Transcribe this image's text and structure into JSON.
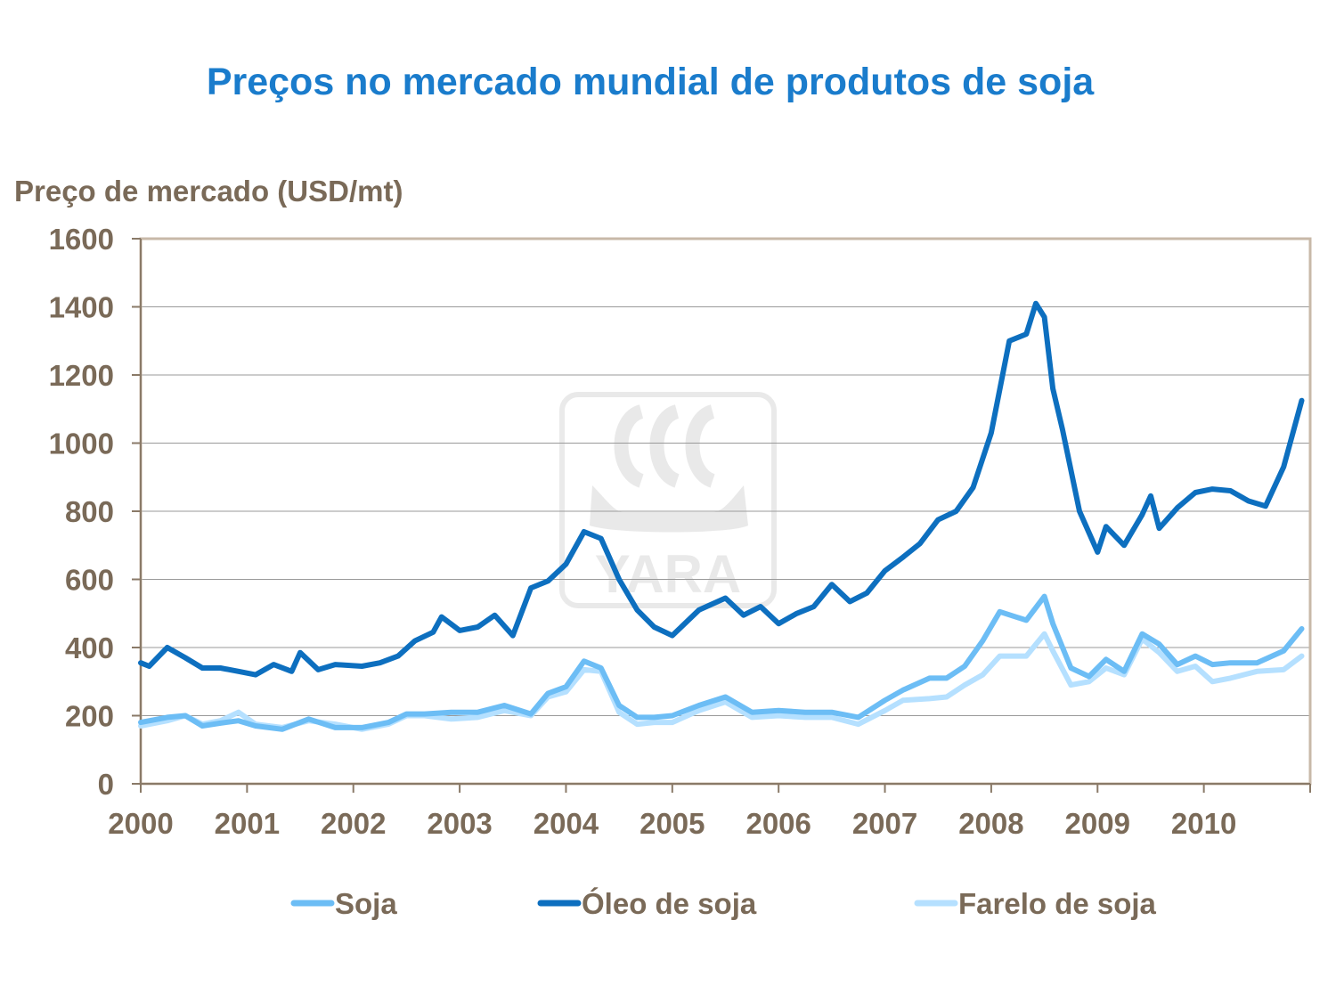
{
  "chart_data": {
    "type": "line",
    "title": "Preços no mercado mundial de produtos de soja",
    "ylabel": "Preço de mercado (USD/mt)",
    "xlabel": "",
    "ylim": [
      0,
      1600
    ],
    "yticks": [
      "0",
      "200",
      "400",
      "600",
      "800",
      "1000",
      "1200",
      "1400",
      "1600"
    ],
    "xlim": [
      2000,
      2011
    ],
    "xticks": [
      "2000",
      "2001",
      "2002",
      "2003",
      "2004",
      "2005",
      "2006",
      "2007",
      "2008",
      "2009",
      "2010"
    ],
    "grid": true,
    "legend_position": "bottom",
    "watermark": "YARA",
    "series": [
      {
        "name": "Soja",
        "color": "#6cbdf5",
        "x": [
          2000.0,
          2000.25,
          2000.42,
          2000.58,
          2000.75,
          2000.92,
          2001.08,
          2001.33,
          2001.58,
          2001.83,
          2002.08,
          2002.33,
          2002.5,
          2002.67,
          2002.92,
          2003.17,
          2003.42,
          2003.67,
          2003.83,
          2004.0,
          2004.17,
          2004.33,
          2004.5,
          2004.67,
          2004.83,
          2005.0,
          2005.25,
          2005.5,
          2005.75,
          2006.0,
          2006.25,
          2006.5,
          2006.75,
          2007.0,
          2007.17,
          2007.42,
          2007.58,
          2007.75,
          2007.92,
          2008.08,
          2008.33,
          2008.5,
          2008.58,
          2008.75,
          2008.92,
          2009.08,
          2009.25,
          2009.42,
          2009.58,
          2009.75,
          2009.92,
          2010.08,
          2010.25,
          2010.5,
          2010.75,
          2010.92
        ],
        "values": [
          180,
          195,
          200,
          170,
          178,
          185,
          170,
          160,
          190,
          165,
          165,
          180,
          205,
          205,
          210,
          210,
          230,
          205,
          265,
          285,
          360,
          340,
          230,
          195,
          195,
          200,
          230,
          255,
          210,
          215,
          210,
          210,
          195,
          245,
          275,
          310,
          310,
          345,
          420,
          505,
          480,
          550,
          470,
          340,
          315,
          365,
          330,
          440,
          410,
          350,
          375,
          350,
          355,
          355,
          390,
          455
        ]
      },
      {
        "name": "Óleo de soja",
        "color": "#0d6fbf",
        "x": [
          2000.0,
          2000.08,
          2000.25,
          2000.42,
          2000.58,
          2000.75,
          2000.92,
          2001.08,
          2001.25,
          2001.42,
          2001.5,
          2001.67,
          2001.83,
          2002.08,
          2002.25,
          2002.42,
          2002.58,
          2002.75,
          2002.83,
          2003.0,
          2003.17,
          2003.33,
          2003.5,
          2003.67,
          2003.83,
          2004.0,
          2004.17,
          2004.33,
          2004.5,
          2004.67,
          2004.83,
          2005.0,
          2005.25,
          2005.5,
          2005.67,
          2005.83,
          2006.0,
          2006.17,
          2006.33,
          2006.5,
          2006.67,
          2006.83,
          2007.0,
          2007.17,
          2007.33,
          2007.5,
          2007.67,
          2007.83,
          2008.0,
          2008.17,
          2008.33,
          2008.42,
          2008.5,
          2008.58,
          2008.67,
          2008.83,
          2009.0,
          2009.08,
          2009.25,
          2009.42,
          2009.5,
          2009.58,
          2009.75,
          2009.92,
          2010.08,
          2010.25,
          2010.42,
          2010.58,
          2010.75,
          2010.92
        ],
        "values": [
          355,
          345,
          400,
          370,
          340,
          340,
          330,
          320,
          350,
          330,
          385,
          335,
          350,
          345,
          355,
          375,
          420,
          445,
          490,
          450,
          460,
          495,
          435,
          575,
          595,
          645,
          740,
          720,
          600,
          510,
          460,
          435,
          510,
          545,
          495,
          520,
          470,
          500,
          520,
          585,
          535,
          560,
          625,
          665,
          705,
          775,
          800,
          870,
          1030,
          1300,
          1320,
          1410,
          1370,
          1160,
          1040,
          800,
          680,
          755,
          700,
          790,
          845,
          750,
          810,
          855,
          865,
          860,
          830,
          815,
          930,
          1125
        ]
      },
      {
        "name": "Farelo de soja",
        "color": "#b5e0ff",
        "x": [
          2000.0,
          2000.25,
          2000.42,
          2000.58,
          2000.75,
          2000.92,
          2001.08,
          2001.33,
          2001.58,
          2001.83,
          2002.08,
          2002.33,
          2002.5,
          2002.67,
          2002.92,
          2003.17,
          2003.42,
          2003.67,
          2003.83,
          2004.0,
          2004.17,
          2004.33,
          2004.5,
          2004.67,
          2004.83,
          2005.0,
          2005.25,
          2005.5,
          2005.75,
          2006.0,
          2006.25,
          2006.5,
          2006.75,
          2007.0,
          2007.17,
          2007.42,
          2007.58,
          2007.75,
          2007.92,
          2008.08,
          2008.33,
          2008.5,
          2008.58,
          2008.75,
          2008.92,
          2009.08,
          2009.25,
          2009.42,
          2009.58,
          2009.75,
          2009.92,
          2010.08,
          2010.25,
          2010.5,
          2010.75,
          2010.92
        ],
        "values": [
          170,
          185,
          200,
          175,
          185,
          210,
          175,
          165,
          185,
          175,
          160,
          175,
          200,
          200,
          190,
          195,
          215,
          200,
          255,
          270,
          335,
          330,
          210,
          175,
          180,
          180,
          215,
          240,
          195,
          200,
          195,
          195,
          175,
          215,
          245,
          250,
          255,
          290,
          320,
          375,
          375,
          440,
          390,
          290,
          300,
          340,
          320,
          425,
          385,
          330,
          345,
          300,
          310,
          330,
          335,
          375
        ]
      }
    ]
  }
}
